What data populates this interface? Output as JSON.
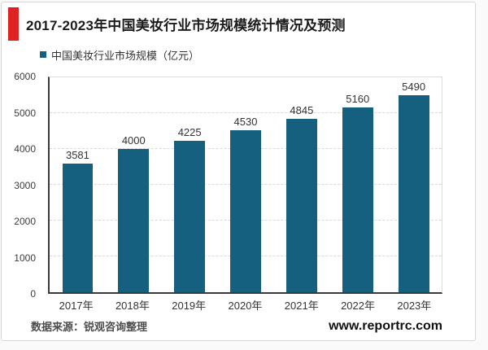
{
  "header": {
    "title": "2017-2023年中国美妆行业市场规模统计情况及预测",
    "accent_color": "#e02222"
  },
  "legend": {
    "label": "中国美妆行业市场规模（亿元）"
  },
  "chart_data": {
    "type": "bar",
    "categories": [
      "2017年",
      "2018年",
      "2019年",
      "2020年",
      "2021年",
      "2022年",
      "2023年"
    ],
    "values": [
      3581,
      4000,
      4225,
      4530,
      4845,
      5160,
      5490
    ],
    "title": "2017-2023年中国美妆行业市场规模统计情况及预测",
    "xlabel": "",
    "ylabel": "",
    "ylim": [
      0,
      6000
    ],
    "ytick_step": 1000,
    "bar_color": "#15607e",
    "grid": "dashed-horizontal",
    "legend_position": "top-left",
    "value_labels": "above-bars"
  },
  "footer": {
    "source": "数据来源：锐观咨询整理",
    "website": "www.reportrc.com"
  }
}
